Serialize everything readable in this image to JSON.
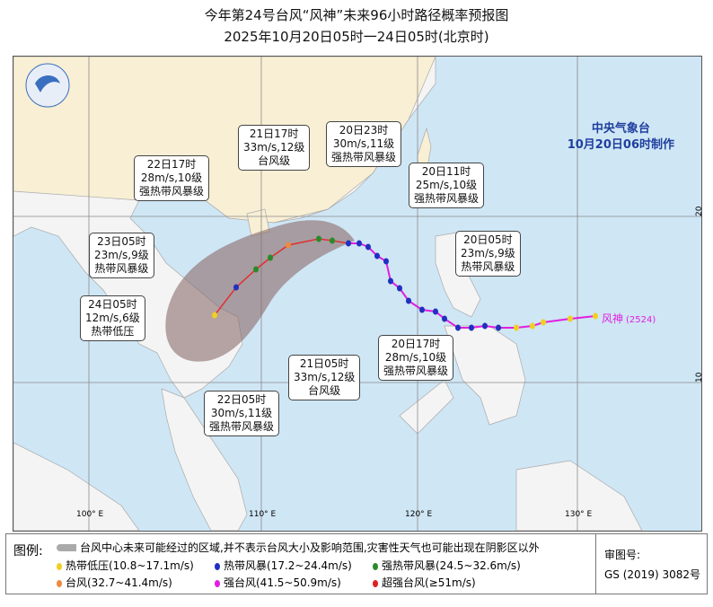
{
  "title": "今年第24号台风“风神”未来96小时路径概率预报图",
  "subtitle": "2025年10月20日05时一24日05时(北京时)",
  "agency": {
    "name": "中央气象台",
    "issued": "10月20日06时制作"
  },
  "typhoon_label": {
    "name": "风神",
    "code": "(2524)"
  },
  "axes": {
    "lon_labels": [
      "100° E",
      "110° E",
      "120° E",
      "130° E"
    ],
    "lat_labels": [
      "20",
      "10"
    ]
  },
  "callouts": [
    {
      "time": "20日05时",
      "wind": "23m/s,9级",
      "level": "热带风暴级"
    },
    {
      "time": "20日11时",
      "wind": "25m/s,10级",
      "level": "强热带风暴级"
    },
    {
      "time": "20日17时",
      "wind": "28m/s,10级",
      "level": "强热带风暴级"
    },
    {
      "time": "20日23时",
      "wind": "30m/s,11级",
      "level": "强热带风暴级"
    },
    {
      "time": "21日05时",
      "wind": "33m/s,12级",
      "level": "台风级"
    },
    {
      "time": "21日17时",
      "wind": "33m/s,12级",
      "level": "台风级"
    },
    {
      "time": "22日05时",
      "wind": "30m/s,11级",
      "level": "强热带风暴级"
    },
    {
      "time": "22日17时",
      "wind": "28m/s,10级",
      "level": "强热带风暴级"
    },
    {
      "time": "23日05时",
      "wind": "23m/s,9级",
      "level": "热带风暴级"
    },
    {
      "time": "24日05时",
      "wind": "12m/s,6级",
      "level": "热带低压"
    }
  ],
  "legend": {
    "title": "图例:",
    "cone": "台风中心未来可能经过的区域,并不表示台风大小及影响范围,灾害性天气也可能出现在阴影区以外",
    "items": [
      {
        "label": "热带低压(10.8~17.1m/s)",
        "color": "#f0d020"
      },
      {
        "label": "热带风暴(17.2~24.4m/s)",
        "color": "#2030c0"
      },
      {
        "label": "强热带风暴(24.5~32.6m/s)",
        "color": "#2a8a2a"
      },
      {
        "label": "台风(32.7~41.4m/s)",
        "color": "#f08a40"
      },
      {
        "label": "强台风(41.5~50.9m/s)",
        "color": "#e020e0"
      },
      {
        "label": "超强台风(≥51m/s)",
        "color": "#e02020"
      }
    ],
    "approval_label": "审图号:",
    "approval_no": "GS (2019) 3082号"
  }
}
